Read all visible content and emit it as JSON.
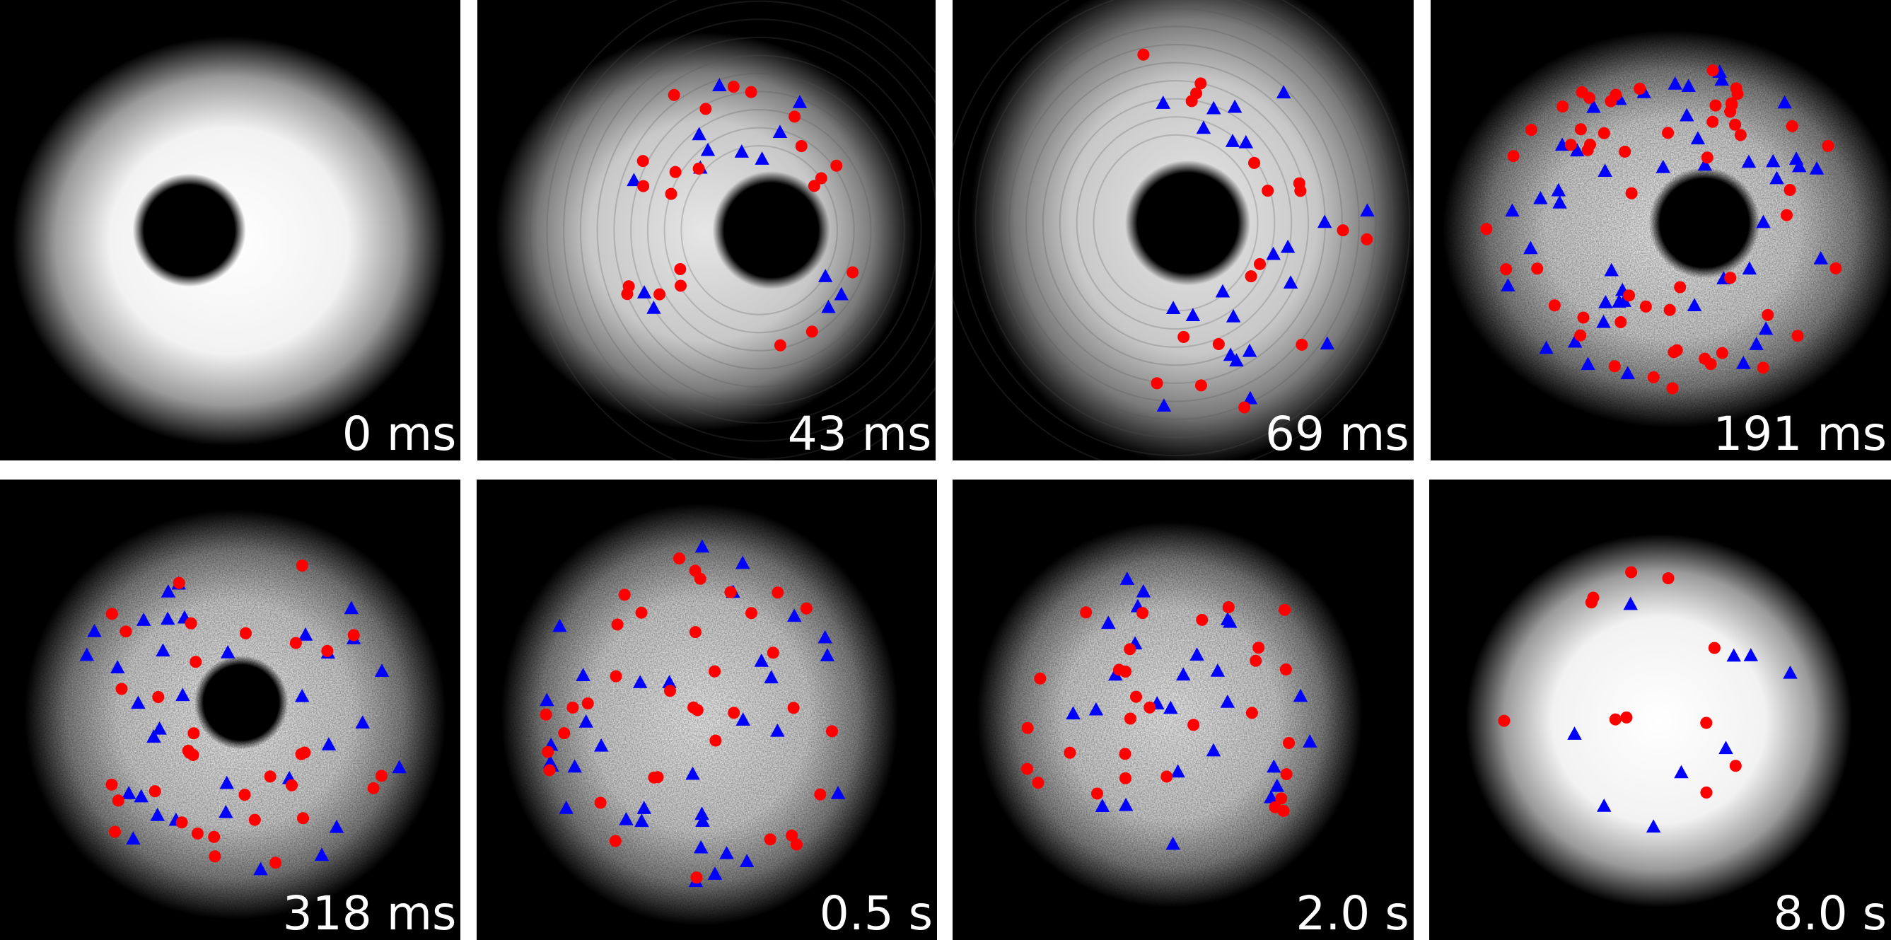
{
  "colors": {
    "panel_background": "#000000",
    "cloud_core": "#ffffff",
    "vortex_marker_red": "#ff0000",
    "antivortex_marker_blue": "#0000ff"
  },
  "marker_legend": {
    "red": "circle",
    "blue": "triangle"
  },
  "panels": [
    {
      "label": "0 ms",
      "hole": true,
      "texture": "smooth",
      "red_count": 0,
      "blue_count": 0
    },
    {
      "label": "43 ms",
      "hole": true,
      "texture": "rings",
      "red_count": 22,
      "blue_count": 14
    },
    {
      "label": "69 ms",
      "hole": true,
      "texture": "rings",
      "red_count": 18,
      "blue_count": 22
    },
    {
      "label": "191 ms",
      "hole": true,
      "texture": "grainy",
      "red_count": 55,
      "blue_count": 45
    },
    {
      "label": "318 ms",
      "hole": true,
      "texture": "grainy",
      "red_count": 34,
      "blue_count": 34
    },
    {
      "label": "0.5 s",
      "hole": false,
      "texture": "grainy",
      "red_count": 36,
      "blue_count": 34
    },
    {
      "label": "2.0 s",
      "hole": false,
      "texture": "grainy",
      "red_count": 30,
      "blue_count": 26
    },
    {
      "label": "8.0 s",
      "hole": false,
      "texture": "smooth",
      "red_count": 11,
      "blue_count": 9
    }
  ]
}
